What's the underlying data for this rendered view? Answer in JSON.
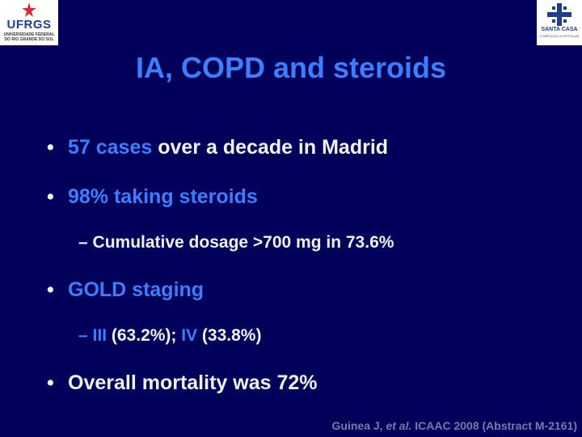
{
  "logos": {
    "left": {
      "name": "UFRGS",
      "subtitle": "UNIVERSIDADE FEDERAL DO RIO GRANDE DO SUL"
    },
    "right": {
      "name": "SANTA CASA",
      "subtitle": "COMPLEXO HOSPITALAR"
    }
  },
  "slide": {
    "title": "IA, COPD and steroids",
    "bullet_glyph": "•",
    "sub_bullet_glyph": "–",
    "bullets": [
      {
        "highlight": "57 cases",
        "text": " over a decade in Madrid"
      },
      {
        "highlight": "98% taking steroids",
        "text": ""
      },
      {
        "highlight": "GOLD staging",
        "text": ""
      },
      {
        "highlight": "",
        "text": "Overall mortality was 72%"
      }
    ],
    "sub_bullets": [
      {
        "text": "Cumulative dosage >700 mg in 73.6%"
      },
      {
        "hl_a": "III",
        "mid": " (63.2%); ",
        "hl_b": "IV",
        "end": " (33.8%)"
      }
    ],
    "citation": {
      "pre": "Guinea J, ",
      "italic": "et al.",
      "post": " ICAAC 2008 (Abstract M-2161)"
    }
  },
  "colors": {
    "background": "#00005a",
    "accent": "#3d7eff",
    "text": "#f0f0f0",
    "citation": "#6f7fa8"
  }
}
